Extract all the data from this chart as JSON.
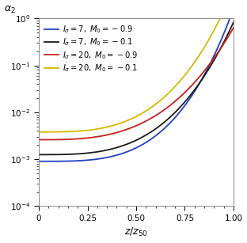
{
  "xlabel": "$z/z_{50}$",
  "ylabel": "$\\alpha_2$",
  "xlim": [
    0,
    1.0
  ],
  "ylim": [
    0.0001,
    1.0
  ],
  "x_ticks": [
    0,
    0.25,
    0.5,
    0.75,
    1.0
  ],
  "x_tick_labels": [
    "0",
    "0.25",
    "0.50",
    "0.75",
    "1.00"
  ],
  "lines": [
    {
      "label": "$I_\\sigma = 7,\\; M_0 = -0.9$",
      "color": "#2040c0",
      "y0": 0.0009,
      "k": 7.5,
      "power": 3.5
    },
    {
      "label": "$I_\\sigma = 7,\\; M_0 = -0.1$",
      "color": "#1a1a1a",
      "y0": 0.00125,
      "k": 6.5,
      "power": 3.2
    },
    {
      "label": "$I_\\sigma = 20,\\; M_0 = -0.9$",
      "color": "#c82020",
      "y0": 0.0026,
      "k": 5.5,
      "power": 3.0
    },
    {
      "label": "$I_\\sigma = 20,\\; M_0 = -0.1$",
      "color": "#d8b800",
      "y0": 0.0038,
      "k": 7.0,
      "power": 3.2
    }
  ],
  "background_color": "#ffffff",
  "legend_fontsize": 7.2,
  "axis_fontsize": 9,
  "tick_fontsize": 7.5
}
